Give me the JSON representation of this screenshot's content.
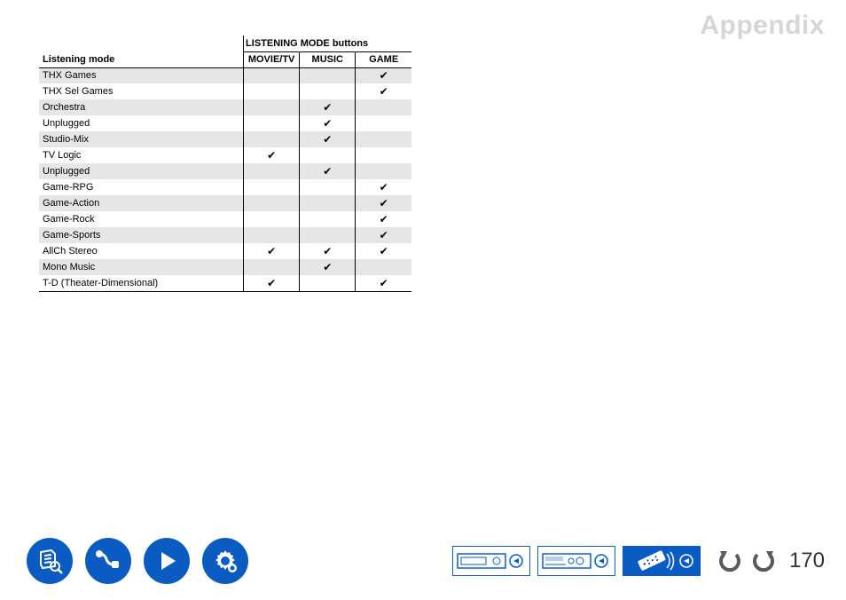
{
  "header": {
    "appendix": "Appendix"
  },
  "table": {
    "super_header": "LISTENING MODE buttons",
    "headers": {
      "mode": "Listening mode",
      "movie": "MOVIE/TV",
      "music": "MUSIC",
      "game": "GAME"
    },
    "check": "✔",
    "row_colors": {
      "alt": "#e6e6e6",
      "normal": "#ffffff"
    },
    "rows": [
      {
        "mode": "THX Games",
        "movie": false,
        "music": false,
        "game": true,
        "alt": true
      },
      {
        "mode": "THX Sel Games",
        "movie": false,
        "music": false,
        "game": true,
        "alt": false
      },
      {
        "mode": "Orchestra",
        "movie": false,
        "music": true,
        "game": false,
        "alt": true
      },
      {
        "mode": "Unplugged",
        "movie": false,
        "music": true,
        "game": false,
        "alt": false
      },
      {
        "mode": "Studio-Mix",
        "movie": false,
        "music": true,
        "game": false,
        "alt": true
      },
      {
        "mode": "TV Logic",
        "movie": true,
        "music": false,
        "game": false,
        "alt": false
      },
      {
        "mode": "Unplugged",
        "movie": false,
        "music": true,
        "game": false,
        "alt": true
      },
      {
        "mode": "Game-RPG",
        "movie": false,
        "music": false,
        "game": true,
        "alt": false
      },
      {
        "mode": "Game-Action",
        "movie": false,
        "music": false,
        "game": true,
        "alt": true
      },
      {
        "mode": "Game-Rock",
        "movie": false,
        "music": false,
        "game": true,
        "alt": false
      },
      {
        "mode": "Game-Sports",
        "movie": false,
        "music": false,
        "game": true,
        "alt": true
      },
      {
        "mode": "AllCh Stereo",
        "movie": true,
        "music": true,
        "game": true,
        "alt": false
      },
      {
        "mode": "Mono Music",
        "movie": false,
        "music": true,
        "game": false,
        "alt": true
      },
      {
        "mode": "T-D (Theater-Dimensional)",
        "movie": true,
        "music": false,
        "game": true,
        "alt": false
      }
    ]
  },
  "footer": {
    "page_number": "170",
    "colors": {
      "brand": "#0a5cc2",
      "arrow": "#5a5a5a"
    }
  }
}
